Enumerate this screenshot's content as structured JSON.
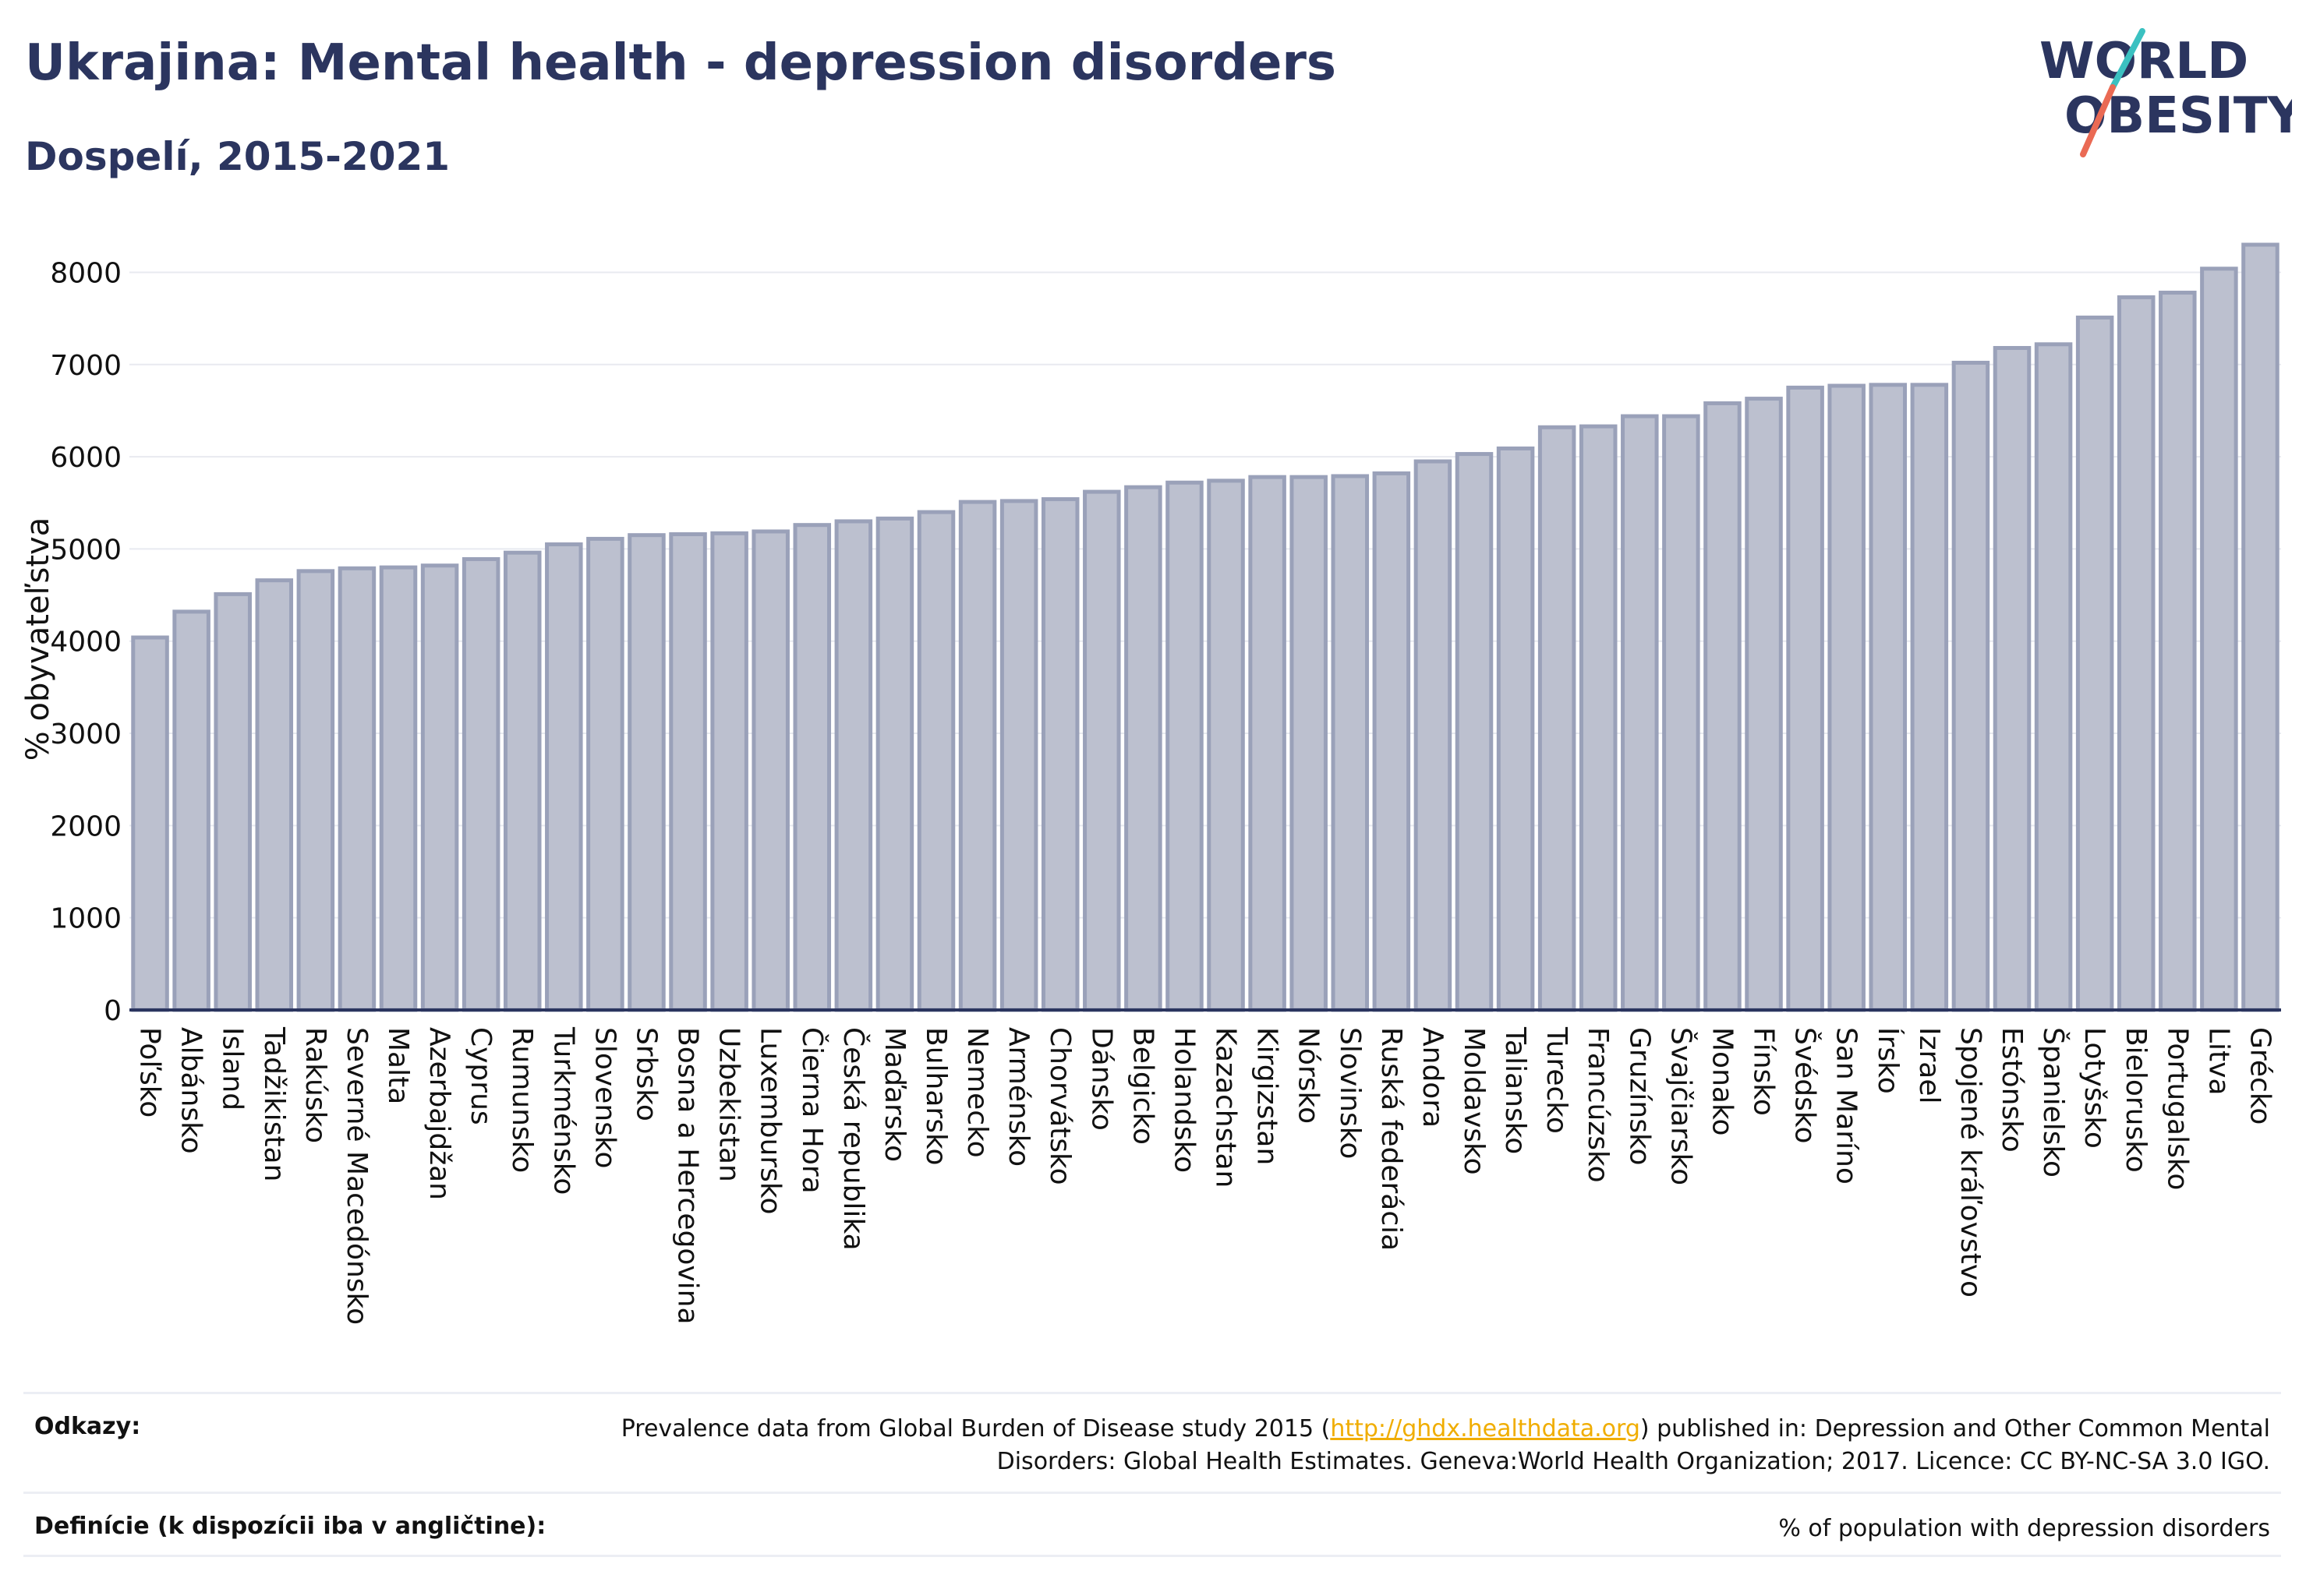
{
  "header": {
    "title": "Ukrajina: Mental health - depression disorders",
    "subtitle": "Dospelí, 2015-2021"
  },
  "logo": {
    "line1": "WORLD",
    "line2": "OBESITY",
    "slash_colors": [
      "#3bc1c1",
      "#ea6a54"
    ]
  },
  "colors": {
    "bar_fill": "#bcc0cf",
    "bar_stroke": "#9aa1b9",
    "axis": "#2b355f",
    "grid": "#e8eaf0",
    "text": "#2b355f",
    "link": "#f0ad00"
  },
  "chart_data": {
    "type": "bar",
    "title": "Ukrajina: Mental health - depression disorders",
    "subtitle": "Dospelí, 2015-2021",
    "xlabel": "",
    "ylabel": "% obyvateľstva",
    "ylim": [
      0,
      8300
    ],
    "yticks": [
      0,
      1000,
      2000,
      3000,
      4000,
      5000,
      6000,
      7000,
      8000
    ],
    "grid": true,
    "categories": [
      "Poľsko",
      "Albánsko",
      "Island",
      "Tadžikistan",
      "Rakúsko",
      "Severné Macedónsko",
      "Malta",
      "Azerbajdžan",
      "Cyprus",
      "Rumunsko",
      "Turkménsko",
      "Slovensko",
      "Srbsko",
      "Bosna a Hercegovina",
      "Uzbekistan",
      "Luxembursko",
      "Čierna Hora",
      "Česká republika",
      "Maďarsko",
      "Bulharsko",
      "Nemecko",
      "Arménsko",
      "Chorvátsko",
      "Dánsko",
      "Belgicko",
      "Holandsko",
      "Kazachstan",
      "Kirgizstan",
      "Nórsko",
      "Slovinsko",
      "Ruská federácia",
      "Andora",
      "Moldavsko",
      "Taliansko",
      "Turecko",
      "Francúzsko",
      "Gruzínsko",
      "Švajčiarsko",
      "Monako",
      "Fínsko",
      "Švédsko",
      "San Maríno",
      "Írsko",
      "Izrael",
      "Spojené kráľovstvo",
      "Estónsko",
      "Španielsko",
      "Lotyšsko",
      "Bielorusko",
      "Portugalsko",
      "Litva",
      "Grécko"
    ],
    "values": [
      4040,
      4320,
      4510,
      4660,
      4760,
      4790,
      4800,
      4820,
      4890,
      4960,
      5050,
      5110,
      5150,
      5160,
      5170,
      5190,
      5260,
      5300,
      5330,
      5400,
      5510,
      5520,
      5540,
      5620,
      5670,
      5720,
      5740,
      5780,
      5780,
      5790,
      5820,
      5950,
      6030,
      6090,
      6320,
      6330,
      6440,
      6440,
      6580,
      6630,
      6750,
      6770,
      6780,
      6780,
      7020,
      7180,
      7220,
      7510,
      7730,
      7780,
      8040,
      8300
    ]
  },
  "references": {
    "sources_label": "Odkazy:",
    "sources_text_before": "Prevalence data from Global Burden of Disease study 2015 (",
    "sources_link": "http://ghdx.healthdata.org",
    "sources_text_after": ") published in: Depression and Other Common Mental Disorders: Global Health Estimates. Geneva:World Health Organization; 2017. Licence: CC BY-NC-SA 3.0 IGO.",
    "definitions_label": "Definície (k dispozícii iba v angličtine):",
    "definitions_text": "% of population with depression disorders"
  }
}
